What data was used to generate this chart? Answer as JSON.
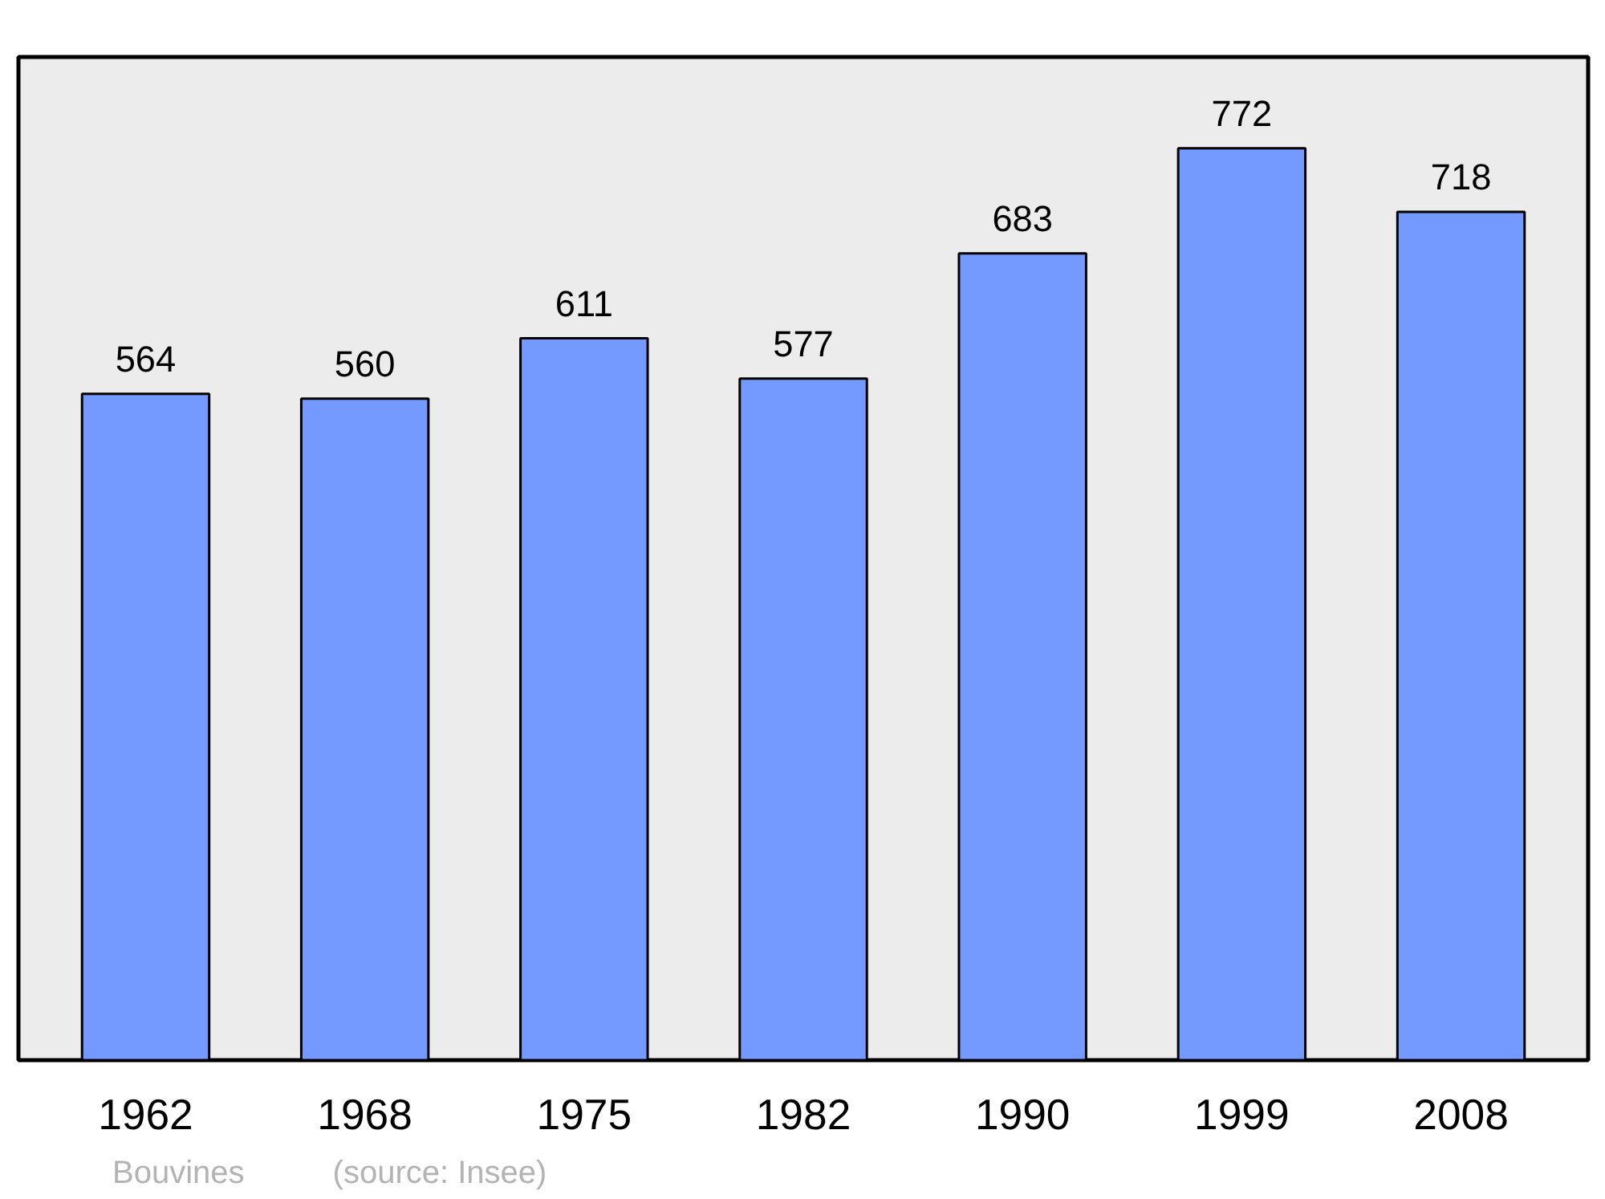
{
  "chart_data": {
    "type": "bar",
    "categories": [
      "1962",
      "1968",
      "1975",
      "1982",
      "1990",
      "1999",
      "2008"
    ],
    "values": [
      564,
      560,
      611,
      577,
      683,
      772,
      718
    ],
    "color": "#7499ff",
    "data_labels": true,
    "grid": false,
    "tick_labels": "x",
    "annotations": [
      "Bouvines",
      "(source: Insee)"
    ]
  }
}
